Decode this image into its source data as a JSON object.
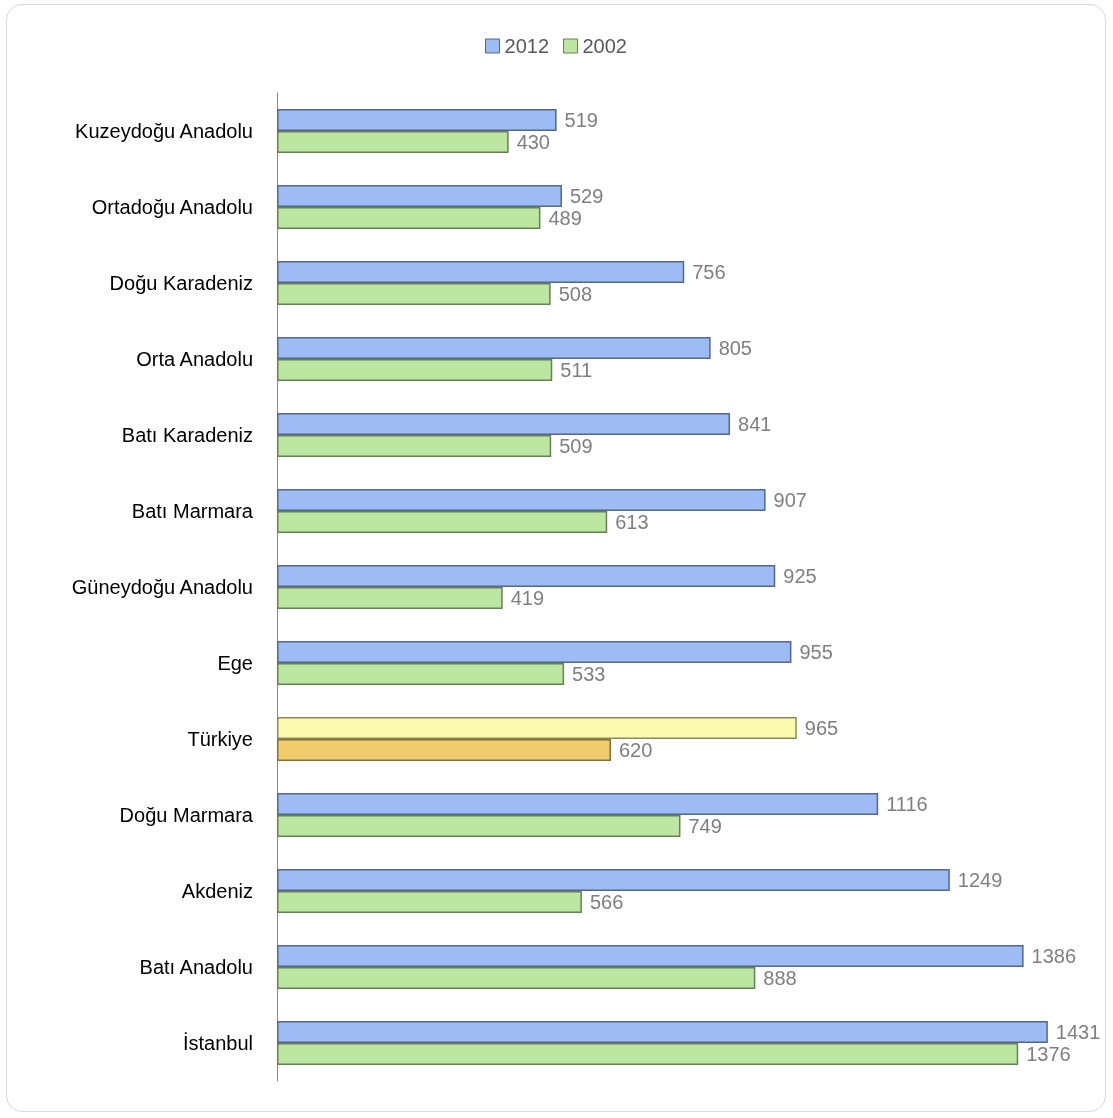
{
  "chart_data": {
    "type": "bar",
    "orientation": "horizontal",
    "relative": false,
    "data_labels": true,
    "legend": "top",
    "grid": false,
    "categories": [
      "Kuzeydoğu Anadolu",
      "Ortadoğu Anadolu",
      "Doğu Karadeniz",
      "Orta Anadolu",
      "Batı Karadeniz",
      "Batı Marmara",
      "Güneydoğu Anadolu",
      "Ege",
      "Türkiye",
      "Doğu Marmara",
      "Akdeniz",
      "Batı Anadolu",
      "İstanbul"
    ],
    "series": [
      {
        "name": "2012",
        "color": "#9dbbf5",
        "colors": [
          "#9dbbf5",
          "#9dbbf5",
          "#9dbbf5",
          "#9dbbf5",
          "#9dbbf5",
          "#9dbbf5",
          "#9dbbf5",
          "#9dbbf5",
          "#fbfaae",
          "#9dbbf5",
          "#9dbbf5",
          "#9dbbf5",
          "#9dbbf5"
        ],
        "values": [
          519,
          529,
          756,
          805,
          841,
          907,
          925,
          955,
          965,
          1116,
          1249,
          1386,
          1431
        ]
      },
      {
        "name": "2002",
        "color": "#bde6a0",
        "colors": [
          "#bde6a0",
          "#bde6a0",
          "#bde6a0",
          "#bde6a0",
          "#bde6a0",
          "#bde6a0",
          "#bde6a0",
          "#bde6a0",
          "#f2cc6a",
          "#bde6a0",
          "#bde6a0",
          "#bde6a0",
          "#bde6a0"
        ],
        "values": [
          430,
          489,
          508,
          511,
          509,
          613,
          419,
          533,
          620,
          749,
          566,
          888,
          1376
        ]
      }
    ]
  }
}
